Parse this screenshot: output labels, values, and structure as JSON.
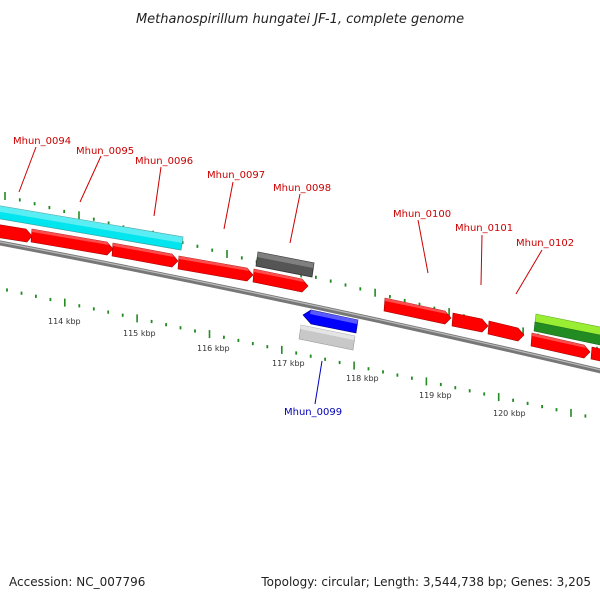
{
  "title": "Methanospirillum hungatei JF-1, complete genome",
  "footer": {
    "accession": "Accession: NC_007796",
    "summary": "Topology: circular; Length: 3,544,738 bp; Genes: 3,205"
  },
  "colors": {
    "forward_gene": "#ff0000",
    "reverse_gene": "#0000ff",
    "forward_label": "#cc0000",
    "reverse_label": "#0000bb",
    "cyan_feature": "#00e5ee",
    "dark_gray_feature": "#555555",
    "light_gray_feature": "#c8c8c8",
    "lime_feature": "#99ee33",
    "green_feature": "#228b22",
    "backbone": "#777777",
    "tick": "#228b22"
  },
  "ruler": {
    "labels": [
      "114 kbp",
      "115 kbp",
      "116 kbp",
      "117 kbp",
      "118 kbp",
      "119 kbp",
      "120 kbp"
    ]
  },
  "genes": [
    {
      "label": "Mhun_0094",
      "strand": "forward"
    },
    {
      "label": "Mhun_0095",
      "strand": "forward"
    },
    {
      "label": "Mhun_0096",
      "strand": "forward"
    },
    {
      "label": "Mhun_0097",
      "strand": "forward"
    },
    {
      "label": "Mhun_0098",
      "strand": "forward"
    },
    {
      "label": "Mhun_0099",
      "strand": "reverse"
    },
    {
      "label": "Mhun_0100",
      "strand": "forward"
    },
    {
      "label": "Mhun_0101",
      "strand": "forward"
    },
    {
      "label": "Mhun_0102",
      "strand": "forward"
    }
  ]
}
